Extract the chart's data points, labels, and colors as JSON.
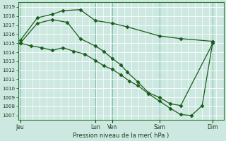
{
  "bg_color": "#cce8e0",
  "grid_major_color": "#aad4cc",
  "grid_minor_color": "#b8ddd6",
  "line_color": "#1a5c1a",
  "xlabel": "Pression niveau de la mer( hPa )",
  "ylim": [
    1006.5,
    1019.5
  ],
  "yticks": [
    1007,
    1008,
    1009,
    1010,
    1011,
    1012,
    1013,
    1014,
    1015,
    1016,
    1017,
    1018,
    1019
  ],
  "xtick_labels": [
    "Jeu",
    "Lun",
    "Ven",
    "Sam",
    "Dim"
  ],
  "xtick_positions": [
    0,
    3.5,
    4.3,
    6.5,
    9.0
  ],
  "xlim": [
    -0.1,
    9.5
  ],
  "vline_positions": [
    0,
    3.5,
    4.3,
    6.5,
    9.0
  ],
  "series1_x": [
    0,
    0.8,
    1.5,
    2.0,
    2.8,
    3.5,
    4.3,
    5.0,
    6.5,
    7.5,
    9.0
  ],
  "series1_y": [
    1015.3,
    1017.8,
    1018.2,
    1018.6,
    1018.7,
    1017.5,
    1017.2,
    1016.8,
    1015.8,
    1015.5,
    1015.2
  ],
  "series2_x": [
    0,
    0.8,
    1.5,
    2.2,
    2.8,
    3.5,
    3.9,
    4.3,
    4.7,
    5.0,
    5.5,
    6.0,
    6.5,
    7.0,
    7.5,
    9.0
  ],
  "series2_y": [
    1015.0,
    1017.2,
    1017.6,
    1017.3,
    1015.5,
    1014.7,
    1014.1,
    1013.3,
    1012.6,
    1011.8,
    1010.7,
    1009.5,
    1009.0,
    1008.3,
    1008.1,
    1015.0
  ],
  "series3_x": [
    0,
    0.5,
    1.0,
    1.5,
    2.0,
    2.5,
    3.0,
    3.5,
    3.9,
    4.3,
    4.7,
    5.1,
    5.5,
    6.0,
    6.5,
    7.0,
    7.5,
    8.0,
    8.5,
    9.0
  ],
  "series3_y": [
    1015.0,
    1014.7,
    1014.5,
    1014.2,
    1014.5,
    1014.1,
    1013.8,
    1013.1,
    1012.5,
    1012.1,
    1011.5,
    1010.8,
    1010.3,
    1009.4,
    1008.6,
    1007.8,
    1007.1,
    1007.0,
    1008.1,
    1015.2
  ]
}
